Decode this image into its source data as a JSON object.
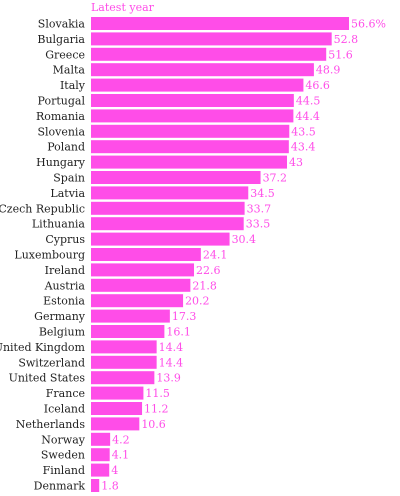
{
  "chart_data": {
    "type": "bar",
    "orientation": "horizontal",
    "column_header": "Latest year",
    "categories": [
      "Slovakia",
      "Bulgaria",
      "Greece",
      "Malta",
      "Italy",
      "Portugal",
      "Romania",
      "Slovenia",
      "Poland",
      "Hungary",
      "Spain",
      "Latvia",
      "Czech Republic",
      "Lithuania",
      "Cyprus",
      "Luxembourg",
      "Ireland",
      "Austria",
      "Estonia",
      "Germany",
      "Belgium",
      "United Kingdom",
      "Switzerland",
      "United States",
      "France",
      "Iceland",
      "Netherlands",
      "Norway",
      "Sweden",
      "Finland",
      "Denmark"
    ],
    "values": [
      56.6,
      52.8,
      51.6,
      48.9,
      46.6,
      44.5,
      44.4,
      43.5,
      43.4,
      43,
      37.2,
      34.5,
      33.7,
      33.5,
      30.4,
      24.1,
      22.6,
      21.8,
      20.2,
      17.3,
      16.1,
      14.4,
      14.4,
      13.9,
      11.5,
      11.2,
      10.6,
      4.2,
      4.1,
      4,
      1.8
    ],
    "value_labels": [
      "56.6%",
      "52.8",
      "51.6",
      "48.9",
      "46.6",
      "44.5",
      "44.4",
      "43.5",
      "43.4",
      "43",
      "37.2",
      "34.5",
      "33.7",
      "33.5",
      "30.4",
      "24.1",
      "22.6",
      "21.8",
      "20.2",
      "17.3",
      "16.1",
      "14.4",
      "14.4",
      "13.9",
      "11.5",
      "11.2",
      "10.6",
      "4.2",
      "4.1",
      "4",
      "1.8"
    ],
    "xlim": [
      0,
      56.6
    ],
    "grid": false,
    "legend": "none"
  },
  "colors": {
    "bar": "#FF4DE8",
    "value_label": "#FF4DE8",
    "header": "#FF4DE8",
    "category_label": "#222222"
  }
}
